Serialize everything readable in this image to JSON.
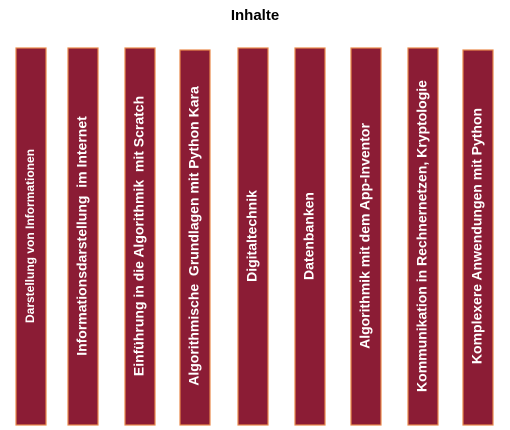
{
  "title": "Inhalte",
  "columns": [
    {
      "label": "Darstellung von Informationen"
    },
    {
      "label": "Informationsdarstellung  im Internet"
    },
    {
      "label": "Einführung in die Algorithmik  mit Scratch"
    },
    {
      "label": "Algorithmische  Grundlagen mit Python Kara"
    },
    {
      "label": "Digitaltechnik"
    },
    {
      "label": "Datenbanken"
    },
    {
      "label": "Algorithmik mit dem App-Inventor"
    },
    {
      "label": "Kommunikation in Rechnernetzen, Kryptologie"
    },
    {
      "label": "Komplexere Anwendungen mit Python"
    }
  ]
}
